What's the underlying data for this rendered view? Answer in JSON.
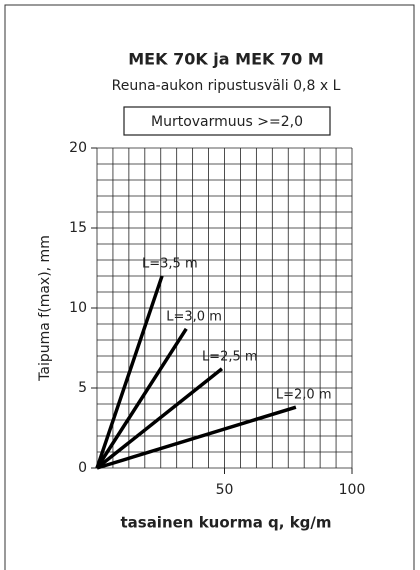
{
  "chart_data": {
    "type": "line",
    "title": "MEK 70K ja MEK 70 M",
    "subtitle": "Reuna-aukon ripustusväli 0,8 x L",
    "annotation": "Murtovarmuus >=2,0",
    "x_label": "tasainen kuorma q, kg/m",
    "y_label": "Taipuma  f(max), mm",
    "xlim": [
      0,
      100
    ],
    "xticks": [
      50,
      100
    ],
    "ylim": [
      0,
      20
    ],
    "yticks": [
      0,
      5,
      10,
      15,
      20
    ],
    "grid": true,
    "series": [
      {
        "name": "L=3,5 m",
        "color": "#000000",
        "x": [
          0,
          25.5
        ],
        "values": [
          0,
          12
        ]
      },
      {
        "name": "L=3,0 m",
        "color": "#000000",
        "x": [
          0,
          35
        ],
        "values": [
          0,
          8.7
        ]
      },
      {
        "name": "L=2,5 m",
        "color": "#000000",
        "x": [
          0,
          49
        ],
        "values": [
          0,
          6.2
        ]
      },
      {
        "name": "L=2,0 m",
        "color": "#000000",
        "x": [
          0,
          78
        ],
        "values": [
          0,
          3.8
        ]
      }
    ]
  }
}
